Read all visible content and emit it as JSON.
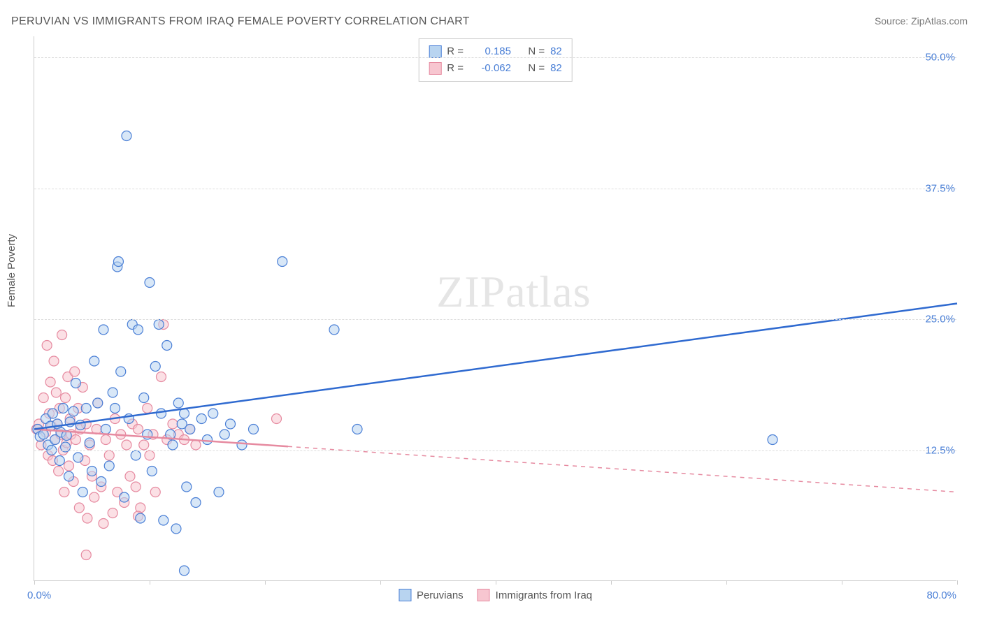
{
  "title": "PERUVIAN VS IMMIGRANTS FROM IRAQ FEMALE POVERTY CORRELATION CHART",
  "source": "Source: ZipAtlas.com",
  "ylabel": "Female Poverty",
  "watermark_prefix": "ZIP",
  "watermark_suffix": "atlas",
  "chart": {
    "type": "scatter-with-regression",
    "background_color": "#ffffff",
    "grid_color": "#dddddd",
    "axis_color": "#cccccc",
    "tick_label_color": "#4a7fd6",
    "xlim": [
      0,
      80
    ],
    "ylim": [
      0,
      52
    ],
    "x_origin_label": "0.0%",
    "x_max_label": "80.0%",
    "x_ticks": [
      0,
      10,
      20,
      30,
      40,
      50,
      60,
      70,
      80
    ],
    "y_gridlines": [
      {
        "value": 12.5,
        "label": "12.5%"
      },
      {
        "value": 25.0,
        "label": "25.0%"
      },
      {
        "value": 37.5,
        "label": "37.5%"
      },
      {
        "value": 50.0,
        "label": "50.0%"
      }
    ],
    "marker_radius": 7,
    "marker_stroke_width": 1.2,
    "line_width": 2.5,
    "series": [
      {
        "name": "Peruvians",
        "fill_color": "#b8d4f0",
        "stroke_color": "#4a7fd6",
        "fill_opacity": 0.55,
        "R": "0.185",
        "N": "82",
        "regression": {
          "x1": 0,
          "y1": 14.5,
          "x2": 80,
          "y2": 26.5,
          "solid_to_x": 80,
          "color": "#2f6ad0"
        },
        "points": [
          [
            0.3,
            14.5
          ],
          [
            0.5,
            13.8
          ],
          [
            0.8,
            14.0
          ],
          [
            1.0,
            15.5
          ],
          [
            1.2,
            13.0
          ],
          [
            1.4,
            14.8
          ],
          [
            1.5,
            12.5
          ],
          [
            1.6,
            16.0
          ],
          [
            1.8,
            13.5
          ],
          [
            2.0,
            15.0
          ],
          [
            2.2,
            11.5
          ],
          [
            2.3,
            14.2
          ],
          [
            2.5,
            16.5
          ],
          [
            2.7,
            12.8
          ],
          [
            2.8,
            13.9
          ],
          [
            3.0,
            10.0
          ],
          [
            3.1,
            15.2
          ],
          [
            3.4,
            16.2
          ],
          [
            3.6,
            18.9
          ],
          [
            3.8,
            11.8
          ],
          [
            4.0,
            14.9
          ],
          [
            4.2,
            8.5
          ],
          [
            4.5,
            16.5
          ],
          [
            4.8,
            13.2
          ],
          [
            5.0,
            10.5
          ],
          [
            5.2,
            21.0
          ],
          [
            5.5,
            17.0
          ],
          [
            5.8,
            9.5
          ],
          [
            6.0,
            24.0
          ],
          [
            6.2,
            14.5
          ],
          [
            6.5,
            11.0
          ],
          [
            6.8,
            18.0
          ],
          [
            7.0,
            16.5
          ],
          [
            7.2,
            30.0
          ],
          [
            7.3,
            30.5
          ],
          [
            7.5,
            20.0
          ],
          [
            7.8,
            8.0
          ],
          [
            8.0,
            42.5
          ],
          [
            8.2,
            15.5
          ],
          [
            8.5,
            24.5
          ],
          [
            8.8,
            12.0
          ],
          [
            9.0,
            24.0
          ],
          [
            9.2,
            6.0
          ],
          [
            9.5,
            17.5
          ],
          [
            9.8,
            14.0
          ],
          [
            10.0,
            28.5
          ],
          [
            10.2,
            10.5
          ],
          [
            10.5,
            20.5
          ],
          [
            10.8,
            24.5
          ],
          [
            11.0,
            16.0
          ],
          [
            11.2,
            5.8
          ],
          [
            11.5,
            22.5
          ],
          [
            11.8,
            14.0
          ],
          [
            12.0,
            13.0
          ],
          [
            12.3,
            5.0
          ],
          [
            12.5,
            17.0
          ],
          [
            12.8,
            15.0
          ],
          [
            13.0,
            16.0
          ],
          [
            13.2,
            9.0
          ],
          [
            13.5,
            14.5
          ],
          [
            14.0,
            7.5
          ],
          [
            14.5,
            15.5
          ],
          [
            15.0,
            13.5
          ],
          [
            15.5,
            16.0
          ],
          [
            16.0,
            8.5
          ],
          [
            16.5,
            14.0
          ],
          [
            17.0,
            15.0
          ],
          [
            18.0,
            13.0
          ],
          [
            19.0,
            14.5
          ],
          [
            13.0,
            1.0
          ],
          [
            21.5,
            30.5
          ],
          [
            26.0,
            24.0
          ],
          [
            28.0,
            14.5
          ],
          [
            64.0,
            13.5
          ]
        ]
      },
      {
        "name": "Immigrants from Iraq",
        "fill_color": "#f7c6d0",
        "stroke_color": "#e68aa0",
        "fill_opacity": 0.55,
        "R": "-0.062",
        "N": "82",
        "regression": {
          "x1": 0,
          "y1": 14.5,
          "x2": 80,
          "y2": 8.5,
          "solid_to_x": 22,
          "color": "#e68aa0"
        },
        "points": [
          [
            0.2,
            14.5
          ],
          [
            0.4,
            15.0
          ],
          [
            0.6,
            13.0
          ],
          [
            0.8,
            17.5
          ],
          [
            1.0,
            14.2
          ],
          [
            1.1,
            22.5
          ],
          [
            1.2,
            12.0
          ],
          [
            1.3,
            16.0
          ],
          [
            1.4,
            19.0
          ],
          [
            1.5,
            14.8
          ],
          [
            1.6,
            11.5
          ],
          [
            1.7,
            21.0
          ],
          [
            1.8,
            13.5
          ],
          [
            1.9,
            18.0
          ],
          [
            2.0,
            15.0
          ],
          [
            2.1,
            10.5
          ],
          [
            2.2,
            16.5
          ],
          [
            2.3,
            14.0
          ],
          [
            2.4,
            23.5
          ],
          [
            2.5,
            12.5
          ],
          [
            2.6,
            8.5
          ],
          [
            2.7,
            17.5
          ],
          [
            2.8,
            13.2
          ],
          [
            2.9,
            19.5
          ],
          [
            3.0,
            11.0
          ],
          [
            3.1,
            15.5
          ],
          [
            3.2,
            14.0
          ],
          [
            3.4,
            9.5
          ],
          [
            3.5,
            20.0
          ],
          [
            3.6,
            13.5
          ],
          [
            3.8,
            16.5
          ],
          [
            3.9,
            7.0
          ],
          [
            4.0,
            14.5
          ],
          [
            4.2,
            18.5
          ],
          [
            4.4,
            11.5
          ],
          [
            4.5,
            15.0
          ],
          [
            4.6,
            6.0
          ],
          [
            4.8,
            13.0
          ],
          [
            5.0,
            10.0
          ],
          [
            5.2,
            8.0
          ],
          [
            5.4,
            14.5
          ],
          [
            5.5,
            17.0
          ],
          [
            5.8,
            9.0
          ],
          [
            6.0,
            5.5
          ],
          [
            6.2,
            13.5
          ],
          [
            6.5,
            12.0
          ],
          [
            6.8,
            6.5
          ],
          [
            7.0,
            15.5
          ],
          [
            7.2,
            8.5
          ],
          [
            7.5,
            14.0
          ],
          [
            7.8,
            7.5
          ],
          [
            8.0,
            13.0
          ],
          [
            8.3,
            10.0
          ],
          [
            8.5,
            15.0
          ],
          [
            8.8,
            9.0
          ],
          [
            9.0,
            14.5
          ],
          [
            9.2,
            7.0
          ],
          [
            9.5,
            13.0
          ],
          [
            9.8,
            16.5
          ],
          [
            10.0,
            12.0
          ],
          [
            10.3,
            14.0
          ],
          [
            10.5,
            8.5
          ],
          [
            11.0,
            19.5
          ],
          [
            11.5,
            13.5
          ],
          [
            12.0,
            15.0
          ],
          [
            12.5,
            14.0
          ],
          [
            13.0,
            13.5
          ],
          [
            13.5,
            14.5
          ],
          [
            14.0,
            13.0
          ],
          [
            9.0,
            6.2
          ],
          [
            11.2,
            24.5
          ],
          [
            21.0,
            15.5
          ],
          [
            4.5,
            2.5
          ]
        ]
      }
    ]
  },
  "top_legend": {
    "R_label": "R =",
    "N_label": "N ="
  },
  "bottom_legend": {
    "items": [
      "Peruvians",
      "Immigrants from Iraq"
    ]
  }
}
